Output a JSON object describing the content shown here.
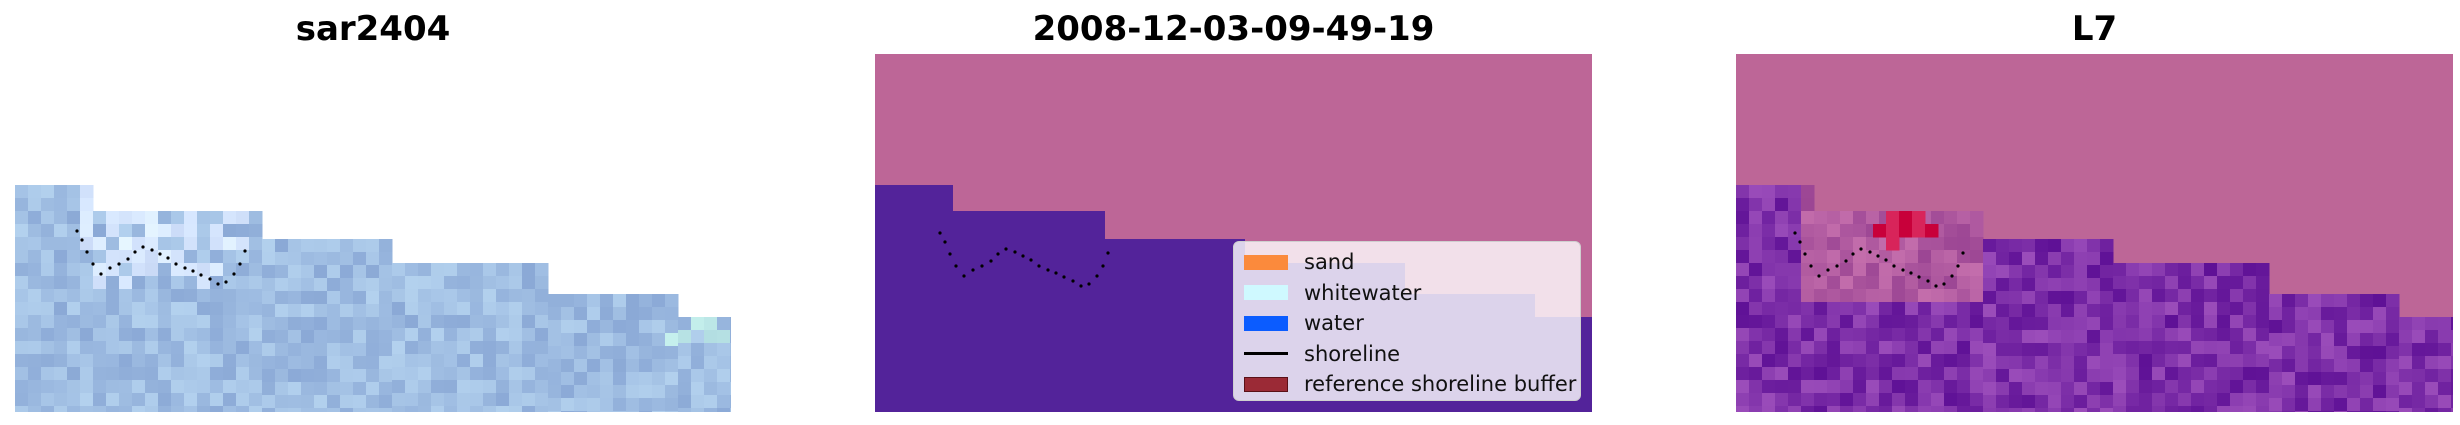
{
  "panels": [
    {
      "title": "sar2404"
    },
    {
      "title": "2008-12-03-09-49-19"
    },
    {
      "title": "L7"
    }
  ],
  "legend": {
    "items": [
      {
        "label": "sand",
        "color": "#fb8a3c",
        "kind": "patch"
      },
      {
        "label": "whitewater",
        "color": "#cff9ff",
        "kind": "patch"
      },
      {
        "label": "water",
        "color": "#0b5cff",
        "kind": "patch"
      },
      {
        "label": "shoreline",
        "color": "#000000",
        "kind": "line"
      },
      {
        "label": "reference shoreline buffer",
        "color": "#9b2a36",
        "kind": "patch"
      }
    ]
  },
  "colors": {
    "land_classified": "#bd6697",
    "water_classified": "#53239a",
    "rgb_image_base": "#9fbde2",
    "index_image_base": "#7d2fa8",
    "index_hotspot": "#c8003a"
  }
}
